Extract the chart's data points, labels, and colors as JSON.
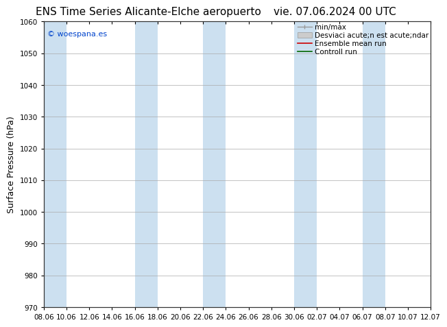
{
  "title_left": "ENS Time Series Alicante-Elche aeropuerto",
  "title_right": "vie. 07.06.2024 00 UTC",
  "ylabel": "Surface Pressure (hPa)",
  "ylim": [
    970,
    1060
  ],
  "yticks": [
    970,
    980,
    990,
    1000,
    1010,
    1020,
    1030,
    1040,
    1050,
    1060
  ],
  "xtick_labels": [
    "08.06",
    "10.06",
    "12.06",
    "14.06",
    "16.06",
    "18.06",
    "20.06",
    "22.06",
    "24.06",
    "26.06",
    "28.06",
    "30.06",
    "02.07",
    "04.07",
    "06.07",
    "08.07",
    "10.07",
    "12.07"
  ],
  "band_color": "#cce0f0",
  "background_color": "#ffffff",
  "legend_line1": "min/max",
  "legend_line2": "Desviaci acute;n est acute;ndar",
  "legend_line3": "Ensemble mean run",
  "legend_line4": "Controll run",
  "watermark": "© woespana.es",
  "watermark_color": "#0044cc",
  "title_fontsize": 11,
  "tick_fontsize": 7.5,
  "ylabel_fontsize": 9,
  "legend_fontsize": 7.5,
  "band_indices": [
    0,
    4,
    7,
    11,
    14
  ]
}
